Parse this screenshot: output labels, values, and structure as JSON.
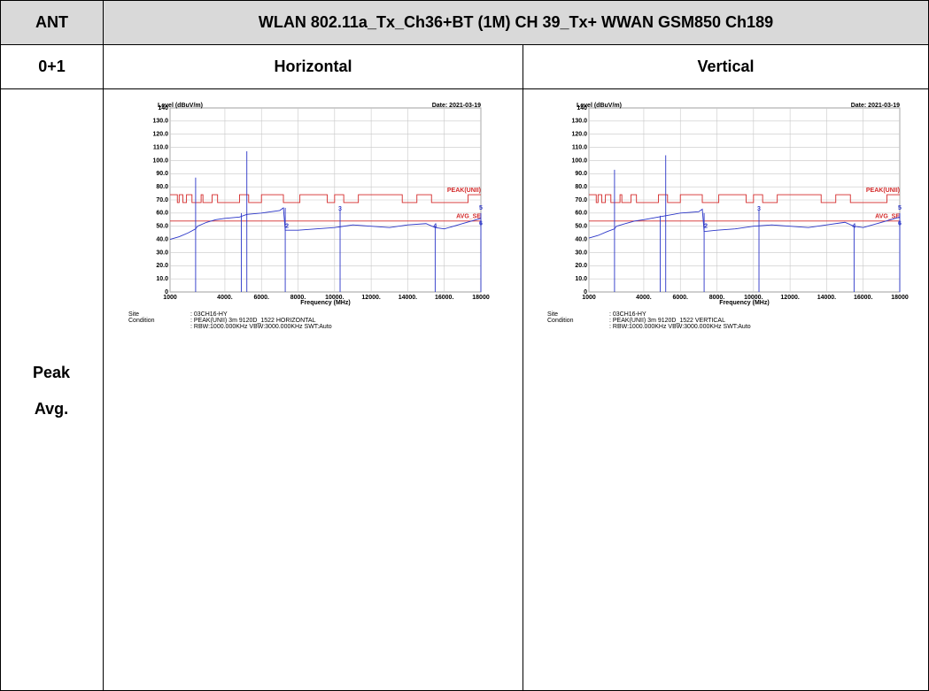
{
  "table": {
    "header": [
      "ANT",
      "WLAN 802.11a_Tx_Ch36+BT (1M) CH 39_Tx+ WWAN GSM850 Ch189"
    ],
    "row2": [
      "0+1",
      "Horizontal",
      "Vertical"
    ],
    "row3_labels": [
      "Peak",
      "Avg."
    ]
  },
  "charts": [
    {
      "type": "line",
      "y_label": "Level (dBuV/m)",
      "date": "Date: 2021-03-19",
      "x_label": "Frequency (MHz)",
      "xlim": [
        1000,
        18000
      ],
      "ylim": [
        0,
        140
      ],
      "yticks": [
        0,
        {
          "value": 10,
          "label": "10.0"
        },
        {
          "value": 20,
          "label": "20.0"
        },
        {
          "value": 30,
          "label": "30.0"
        },
        {
          "value": 40,
          "label": "40.0"
        },
        {
          "value": 50,
          "label": "50.0"
        },
        {
          "value": 60,
          "label": "60.0"
        },
        {
          "value": 70,
          "label": "70.0"
        },
        {
          "value": 80,
          "label": "80.0"
        },
        {
          "value": 90,
          "label": "90.0"
        },
        {
          "value": 100,
          "label": "100.0"
        },
        {
          "value": 110,
          "label": "110.0"
        },
        {
          "value": 120,
          "label": "120.0"
        },
        {
          "value": 130,
          "label": "130.0"
        },
        140
      ],
      "xticks": [
        1000,
        {
          "value": 4000,
          "label": "4000."
        },
        {
          "value": 6000,
          "label": "6000."
        },
        {
          "value": 8000,
          "label": "8000."
        },
        {
          "value": 10000,
          "label": "10000."
        },
        {
          "value": 12000,
          "label": "12000."
        },
        {
          "value": 14000,
          "label": "14000."
        },
        {
          "value": 16000,
          "label": "16000."
        },
        18000
      ],
      "grid": true,
      "series": [
        {
          "name": "PEAK(UNII)",
          "color": "#d42a2a",
          "x": [
            1000,
            1400,
            1400,
            1500,
            1500,
            1700,
            1700,
            1900,
            1900,
            2200,
            2200,
            2700,
            2700,
            2800,
            2800,
            3300,
            3300,
            3600,
            3600,
            4800,
            4800,
            5300,
            5300,
            6000,
            6000,
            7200,
            7200,
            8100,
            8100,
            9600,
            9600,
            10000,
            10000,
            10500,
            10500,
            11300,
            11300,
            13700,
            13700,
            14500,
            14500,
            15300,
            15300,
            17300,
            17300,
            18000
          ],
          "values": [
            74,
            74,
            68,
            68,
            74,
            74,
            68,
            68,
            74,
            74,
            68,
            68,
            74,
            74,
            68,
            68,
            74,
            74,
            68,
            68,
            74,
            74,
            68,
            68,
            74,
            74,
            68,
            68,
            74,
            74,
            68,
            68,
            74,
            74,
            68,
            68,
            74,
            74,
            68,
            68,
            74,
            74,
            68,
            68,
            74,
            74
          ]
        },
        {
          "name": "AVG_SE",
          "color": "#d42a2a",
          "x": [
            1000,
            18000
          ],
          "values": [
            54,
            54
          ]
        },
        {
          "color": "#2a35c8",
          "x": [
            1000,
            1500,
            2000,
            2400,
            2500,
            3000,
            3500,
            4000,
            4800,
            5200,
            6000,
            7000,
            7200,
            7300,
            8000,
            9000,
            10000,
            11000,
            12000,
            13000,
            14000,
            15000,
            15500,
            16000,
            17000,
            18000
          ],
          "values": [
            40,
            42,
            45,
            48,
            50,
            53,
            55,
            56,
            57,
            59,
            60,
            62,
            64,
            47,
            47,
            48,
            49,
            51,
            50,
            49,
            51,
            52,
            49,
            48,
            52,
            56
          ]
        }
      ],
      "spikes": {
        "color": "#2a35c8",
        "x": [
          2400,
          4900,
          5200,
          7300,
          10300,
          15500,
          18000
        ],
        "values": [
          87,
          60,
          107,
          64,
          62,
          50,
          60
        ]
      },
      "markers": {
        "labels": [
          "2",
          "3",
          "4",
          "5",
          "6"
        ],
        "x": [
          7400,
          10300,
          15500,
          18000,
          18000
        ],
        "y": [
          50,
          63,
          50,
          64,
          52
        ]
      },
      "notes": {
        "site_label": "Site",
        "site": ": 03CH16-HY",
        "condition_label": "Condition",
        "condition": [
          ": PEAK(UNII) 3m 9120D_1522 HORIZONTAL",
          ": RBW:1000.000KHz VBW:3000.000KHz SWT:Auto"
        ]
      }
    },
    {
      "type": "line",
      "y_label": "Level (dBuV/m)",
      "date": "Date: 2021-03-19",
      "x_label": "Frequency (MHz)",
      "xlim": [
        1000,
        18000
      ],
      "ylim": [
        0,
        140
      ],
      "yticks": [
        0,
        {
          "value": 10,
          "label": "10.0"
        },
        {
          "value": 20,
          "label": "20.0"
        },
        {
          "value": 30,
          "label": "30.0"
        },
        {
          "value": 40,
          "label": "40.0"
        },
        {
          "value": 50,
          "label": "50.0"
        },
        {
          "value": 60,
          "label": "60.0"
        },
        {
          "value": 70,
          "label": "70.0"
        },
        {
          "value": 80,
          "label": "80.0"
        },
        {
          "value": 90,
          "label": "90.0"
        },
        {
          "value": 100,
          "label": "100.0"
        },
        {
          "value": 110,
          "label": "110.0"
        },
        {
          "value": 120,
          "label": "120.0"
        },
        {
          "value": 130,
          "label": "130.0"
        },
        140
      ],
      "xticks": [
        1000,
        {
          "value": 4000,
          "label": "4000."
        },
        {
          "value": 6000,
          "label": "6000."
        },
        {
          "value": 8000,
          "label": "8000."
        },
        {
          "value": 10000,
          "label": "10000."
        },
        {
          "value": 12000,
          "label": "12000."
        },
        {
          "value": 14000,
          "label": "14000."
        },
        {
          "value": 16000,
          "label": "16000."
        },
        18000
      ],
      "grid": true,
      "series": [
        {
          "name": "PEAK(UNII)",
          "color": "#d42a2a",
          "x": [
            1000,
            1400,
            1400,
            1500,
            1500,
            1700,
            1700,
            1900,
            1900,
            2200,
            2200,
            2700,
            2700,
            2800,
            2800,
            3300,
            3300,
            3600,
            3600,
            4800,
            4800,
            5300,
            5300,
            6000,
            6000,
            7200,
            7200,
            8100,
            8100,
            9600,
            9600,
            10000,
            10000,
            10500,
            10500,
            11300,
            11300,
            13700,
            13700,
            14500,
            14500,
            15300,
            15300,
            17300,
            17300,
            18000
          ],
          "values": [
            74,
            74,
            68,
            68,
            74,
            74,
            68,
            68,
            74,
            74,
            68,
            68,
            74,
            74,
            68,
            68,
            74,
            74,
            68,
            68,
            74,
            74,
            68,
            68,
            74,
            74,
            68,
            68,
            74,
            74,
            68,
            68,
            74,
            74,
            68,
            68,
            74,
            74,
            68,
            68,
            74,
            74,
            68,
            68,
            74,
            74
          ]
        },
        {
          "name": "AVG_SE",
          "color": "#d42a2a",
          "x": [
            1000,
            18000
          ],
          "values": [
            54,
            54
          ]
        },
        {
          "color": "#2a35c8",
          "x": [
            1000,
            1500,
            2000,
            2400,
            2500,
            3000,
            3500,
            4000,
            4800,
            5200,
            6000,
            7000,
            7200,
            7300,
            8000,
            9000,
            10000,
            11000,
            12000,
            13000,
            14000,
            15000,
            15500,
            16000,
            17000,
            18000
          ],
          "values": [
            41,
            43,
            46,
            48,
            50,
            52,
            54,
            55,
            57,
            58,
            60,
            61,
            63,
            46,
            47,
            48,
            50,
            51,
            50,
            49,
            51,
            53,
            50,
            49,
            53,
            57
          ]
        }
      ],
      "spikes": {
        "color": "#2a35c8",
        "x": [
          2400,
          4900,
          5200,
          7300,
          10300,
          15500,
          18000
        ],
        "values": [
          93,
          58,
          104,
          60,
          62,
          50,
          60
        ]
      },
      "markers": {
        "labels": [
          "2",
          "3",
          "4",
          "5",
          "6"
        ],
        "x": [
          7400,
          10300,
          15500,
          18000,
          18000
        ],
        "y": [
          50,
          63,
          50,
          64,
          52
        ]
      },
      "notes": {
        "site_label": "Site",
        "site": ": 03CH16-HY",
        "condition_label": "Condition",
        "condition": [
          ": PEAK(UNII) 3m 9120D_1522 VERTICAL",
          ": RBW:1000.000KHz VBW:3000.000KHz SWT:Auto"
        ]
      }
    }
  ]
}
